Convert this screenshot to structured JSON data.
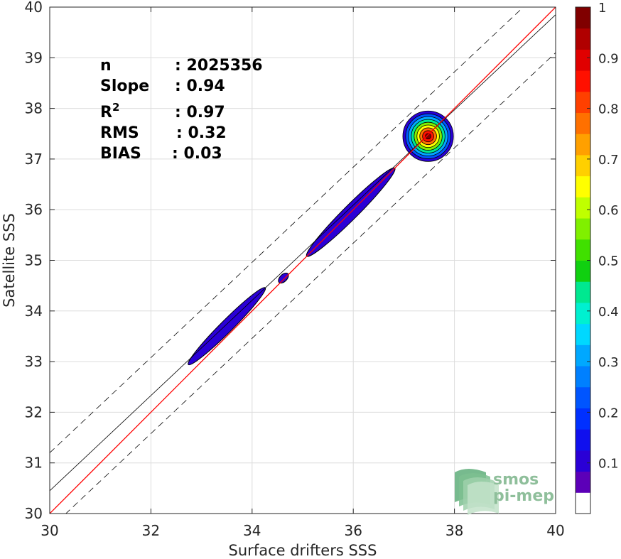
{
  "chart_data": {
    "type": "heatmap",
    "title": "",
    "xlabel": "Surface drifters SSS",
    "ylabel": "Satellite SSS",
    "xlim": [
      30,
      40
    ],
    "ylim": [
      30,
      40
    ],
    "xticks": [
      30,
      32,
      34,
      36,
      38,
      40
    ],
    "yticks": [
      30,
      31,
      32,
      33,
      34,
      35,
      36,
      37,
      38,
      39,
      40
    ],
    "grid": true,
    "stats": [
      {
        "label": "n",
        "value": ": 2025356"
      },
      {
        "label": "Slope",
        "value": ": 0.94"
      },
      {
        "label": "R",
        "sup": "2",
        "value": ": 0.97"
      },
      {
        "label": "RMS",
        "value": ": 0.32"
      },
      {
        "label": "BIAS",
        "value": ": 0.03"
      }
    ],
    "reference_lines": {
      "identity": {
        "slope": 1,
        "intercept": 0,
        "color": "#ff0000"
      },
      "regression": {
        "slope": 0.94,
        "intercept": 2.25,
        "color": "#000000"
      },
      "offset_bounds": {
        "offset": 0.75,
        "style": "dashed",
        "color": "#000000"
      }
    },
    "density_clusters": [
      {
        "center": [
          33.5,
          33.7
        ],
        "extent_x": [
          32.7,
          34.3
        ],
        "extent_y": [
          32.9,
          34.4
        ],
        "peak": 0.12
      },
      {
        "center": [
          34.62,
          34.65
        ],
        "extent_x": [
          34.55,
          34.7
        ],
        "extent_y": [
          34.55,
          34.75
        ],
        "peak": 0.12
      },
      {
        "center": [
          35.95,
          35.95
        ],
        "extent_x": [
          35.1,
          36.85
        ],
        "extent_y": [
          35.1,
          36.9
        ],
        "peak": 0.12
      },
      {
        "center": [
          37.48,
          37.45
        ],
        "extent_x": [
          36.95,
          37.95
        ],
        "extent_y": [
          36.9,
          37.95
        ],
        "peak": 1.0
      }
    ],
    "colorbar": {
      "ticks": [
        0.1,
        0.2,
        0.3,
        0.4,
        0.5,
        0.6,
        0.7,
        0.8,
        0.9,
        1
      ],
      "tick_labels": [
        "0.1",
        "0.2",
        "0.3",
        "0.4",
        "0.5",
        "0.6",
        "0.7",
        "0.8",
        "0.9",
        "1"
      ],
      "colors": [
        "#ffffff",
        "#5c00b8",
        "#2a00d6",
        "#1010ee",
        "#0030ff",
        "#0055ff",
        "#0080ff",
        "#00a8ff",
        "#00d8ff",
        "#00f0d0",
        "#00e890",
        "#10d010",
        "#40e000",
        "#80f000",
        "#c0ff00",
        "#ffff00",
        "#ffd000",
        "#ffa000",
        "#ff7000",
        "#ff4000",
        "#ff1000",
        "#e00000",
        "#b00000",
        "#800000"
      ]
    }
  },
  "logo": {
    "line1": "smos",
    "line2": "pi-mep"
  }
}
